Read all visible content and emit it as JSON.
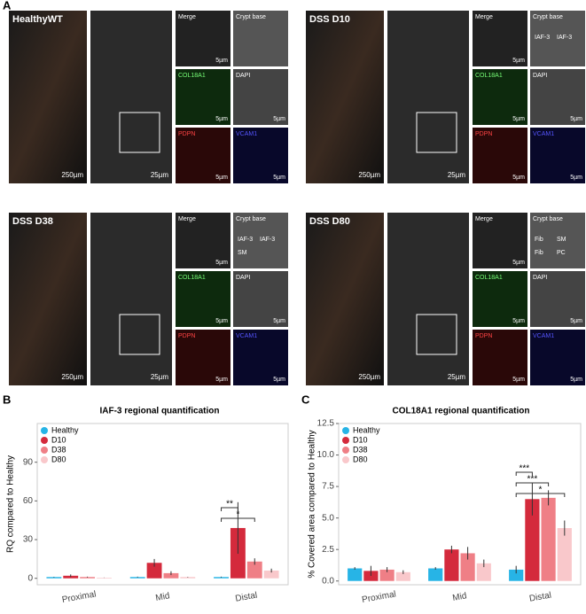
{
  "figure": {
    "panel_a_label": "A",
    "panel_b_label": "B",
    "panel_c_label": "C"
  },
  "panels": [
    {
      "title": "HealthyWT",
      "overview_scale": "250µm",
      "zoom_scale": "25µm",
      "tiles": [
        {
          "label": "Merge",
          "scale": "5µm"
        },
        {
          "label": "Crypt base"
        },
        {
          "label": "COL18A1",
          "scale": "5µm"
        },
        {
          "label": "DAPI",
          "scale": "5µm"
        },
        {
          "label": "PDPN",
          "scale": "5µm"
        },
        {
          "label": "VCAM1",
          "scale": "5µm"
        }
      ],
      "annotations": []
    },
    {
      "title": "DSS D10",
      "overview_scale": "250µm",
      "zoom_scale": "25µm",
      "tiles": [
        {
          "label": "Merge",
          "scale": "5µm"
        },
        {
          "label": "Crypt base"
        },
        {
          "label": "COL18A1",
          "scale": "5µm"
        },
        {
          "label": "DAPI",
          "scale": "5µm"
        },
        {
          "label": "PDPN",
          "scale": "5µm"
        },
        {
          "label": "VCAM1",
          "scale": "5µm"
        }
      ],
      "annotations": [
        "IAF-3",
        "IAF-3"
      ]
    },
    {
      "title": "DSS D38",
      "overview_scale": "250µm",
      "zoom_scale": "25µm",
      "tiles": [
        {
          "label": "Merge",
          "scale": "5µm"
        },
        {
          "label": "Crypt base"
        },
        {
          "label": "COL18A1",
          "scale": "5µm"
        },
        {
          "label": "DAPI",
          "scale": "5µm"
        },
        {
          "label": "PDPN",
          "scale": "5µm"
        },
        {
          "label": "VCAM1",
          "scale": "5µm"
        }
      ],
      "annotations": [
        "IAF-3",
        "IAF-3",
        "SM"
      ]
    },
    {
      "title": "DSS D80",
      "overview_scale": "250µm",
      "zoom_scale": "25µm",
      "tiles": [
        {
          "label": "Merge",
          "scale": "5µm"
        },
        {
          "label": "Crypt base"
        },
        {
          "label": "COL18A1",
          "scale": "5µm"
        },
        {
          "label": "DAPI",
          "scale": "5µm"
        },
        {
          "label": "PDPN",
          "scale": "5µm"
        },
        {
          "label": "VCAM1",
          "scale": "5µm"
        }
      ],
      "annotations": [
        "Fib",
        "SM",
        "Fib",
        "PC"
      ]
    }
  ],
  "chart_data": [
    {
      "type": "bar",
      "title": "IAF-3 regional quantification",
      "y_label": "RQ compared to Healthy",
      "categories": [
        "Proximal",
        "Mid",
        "Distal"
      ],
      "series": [
        {
          "name": "Healthy",
          "color": "#27b4e6",
          "values": [
            1,
            1,
            1
          ],
          "errors": [
            0.2,
            0.3,
            0.3
          ]
        },
        {
          "name": "D10",
          "color": "#d42a3c",
          "values": [
            2,
            12,
            39
          ],
          "errors": [
            1,
            3,
            20
          ]
        },
        {
          "name": "D38",
          "color": "#ef7f86",
          "values": [
            1,
            4,
            13
          ],
          "errors": [
            0.3,
            1.5,
            2.5
          ]
        },
        {
          "name": "D80",
          "color": "#f9c8cb",
          "values": [
            0.5,
            1,
            6
          ],
          "errors": [
            0.1,
            0.2,
            1.5
          ]
        }
      ],
      "ylim": [
        -5,
        120
      ],
      "yticks": [
        0,
        30,
        60,
        90
      ],
      "significance": [
        "**",
        "*"
      ]
    },
    {
      "type": "bar",
      "title": "COL18A1 regional quantification",
      "y_label": "% Covered area compared to Healthy",
      "categories": [
        "Proximal",
        "Mid",
        "Distal"
      ],
      "series": [
        {
          "name": "Healthy",
          "color": "#27b4e6",
          "values": [
            1.0,
            1.0,
            0.9
          ],
          "errors": [
            0.1,
            0.1,
            0.3
          ]
        },
        {
          "name": "D10",
          "color": "#d42a3c",
          "values": [
            0.8,
            2.5,
            6.5
          ],
          "errors": [
            0.4,
            0.3,
            1.3
          ]
        },
        {
          "name": "D38",
          "color": "#ef7f86",
          "values": [
            0.9,
            2.2,
            6.6
          ],
          "errors": [
            0.2,
            0.5,
            0.6
          ]
        },
        {
          "name": "D80",
          "color": "#f9c8cb",
          "values": [
            0.7,
            1.4,
            4.2
          ],
          "errors": [
            0.15,
            0.3,
            0.6
          ]
        }
      ],
      "ylim": [
        -0.3,
        12.5
      ],
      "yticks": [
        {
          "value": 0,
          "label": "0.0"
        },
        2.5,
        {
          "value": 5,
          "label": "5.0"
        },
        7.5,
        {
          "value": 10,
          "label": "10.0"
        },
        12.5
      ],
      "significance": [
        "***",
        "***",
        "*"
      ]
    }
  ]
}
